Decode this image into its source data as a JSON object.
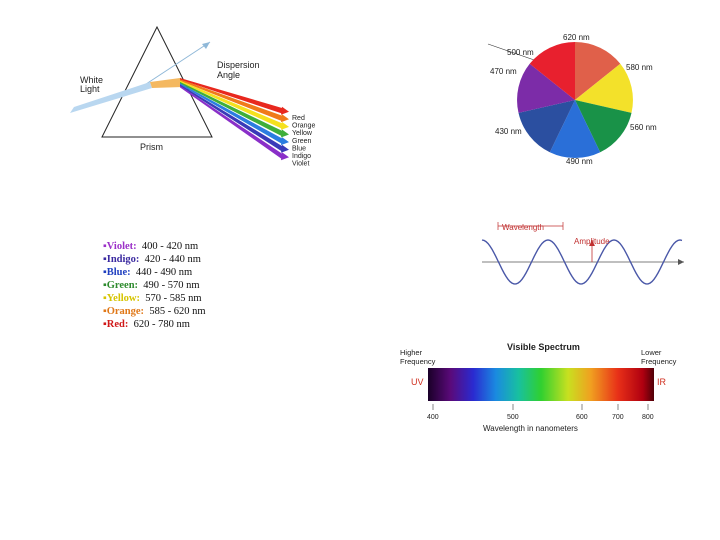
{
  "prism_diagram": {
    "white_light_label": [
      "White",
      "Light"
    ],
    "dispersion_label": [
      "Dispersion",
      "Angle"
    ],
    "prism_label": "Prism",
    "band_labels": [
      "Red",
      "Orange",
      "Yellow",
      "Green",
      "Blue",
      "Indigo",
      "Violet"
    ],
    "band_colors": [
      "#e8281e",
      "#f07a1a",
      "#f5e11e",
      "#3fae3a",
      "#2b7de0",
      "#3a3ab8",
      "#8a2fc8"
    ]
  },
  "color_wheel": {
    "labels": [
      "620 nm",
      "580 nm",
      "560 nm",
      "490 nm",
      "430 nm",
      "470 nm",
      "500 nm"
    ],
    "sector_colors": [
      "#e0604a",
      "#f3e12a",
      "#199248",
      "#2a6fd8",
      "#2b4fa0",
      "#7c2ca8",
      "#e8202e"
    ]
  },
  "wave_diagram": {
    "wavelength_label": "Wavelength",
    "amplitude_label": "Amplitude"
  },
  "spectrum": {
    "title": "Visible Spectrum",
    "left_label": [
      "Higher",
      "Frequency"
    ],
    "right_label": [
      "Lower",
      "Frequency"
    ],
    "uv_label": "UV",
    "ir_label": "IR",
    "ticks": [
      "400",
      "500",
      "600",
      "700",
      "800"
    ],
    "xlabel": "Wavelength in nanometers"
  },
  "color_ranges": [
    {
      "name": "Violet:",
      "range": "400 - 420 nm",
      "color": "#9b30c8"
    },
    {
      "name": "Indigo:",
      "range": "420 - 440 nm",
      "color": "#3b2aa0"
    },
    {
      "name": "Blue:",
      "range": "440 - 490 nm",
      "color": "#1f3fc0"
    },
    {
      "name": "Green:",
      "range": "490 - 570 nm",
      "color": "#2e8b2e"
    },
    {
      "name": "Yellow:",
      "range": "570 - 585 nm",
      "color": "#d6c400"
    },
    {
      "name": "Orange:",
      "range": "585 - 620 nm",
      "color": "#e07818"
    },
    {
      "name": "Red:",
      "range": "620 - 780 nm",
      "color": "#d01818"
    }
  ]
}
